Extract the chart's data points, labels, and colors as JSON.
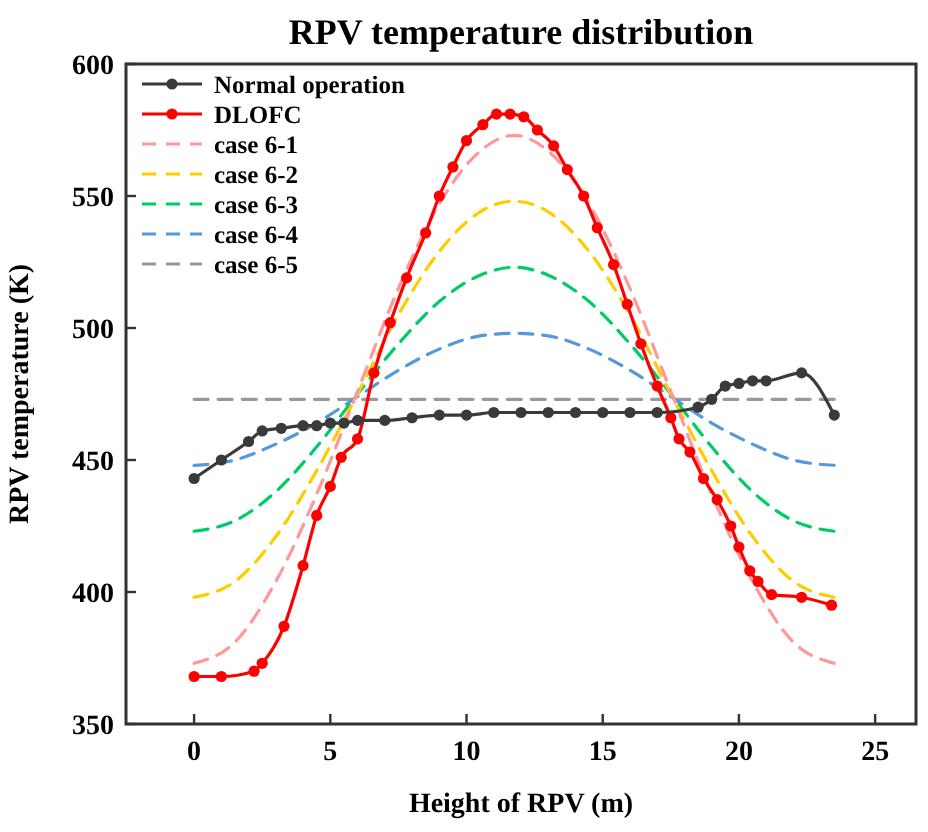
{
  "chart_data": {
    "type": "line",
    "title": "RPV temperature distribution",
    "xlabel": "Height of RPV (m)",
    "ylabel": "RPV temperature (K)",
    "xlim": [
      -2.5,
      26.5
    ],
    "ylim": [
      350,
      600
    ],
    "xticks": [
      0,
      5,
      10,
      15,
      20,
      25
    ],
    "yticks": [
      350,
      400,
      450,
      500,
      550,
      600
    ],
    "grid": false,
    "legend": "top left",
    "series": [
      {
        "name": "Normal operation",
        "color": "#3a3a3a",
        "marker": "circle",
        "line_style": "solid",
        "x": [
          0,
          1,
          2,
          2.5,
          3.2,
          4,
          4.5,
          5,
          5.5,
          6,
          7,
          8,
          9,
          10,
          11,
          12,
          13,
          14,
          15,
          16,
          17,
          18.5,
          19,
          19.5,
          20,
          20.5,
          21,
          22.3,
          23.5
        ],
        "values": [
          443,
          450,
          457,
          461,
          462,
          463,
          463,
          464,
          464,
          465,
          465,
          466,
          467,
          467,
          468,
          468,
          468,
          468,
          468,
          468,
          468,
          470,
          473,
          478,
          479,
          480,
          480,
          483,
          467
        ]
      },
      {
        "name": "DLOFC",
        "color": "#ff0000",
        "marker": "circle",
        "line_style": "solid",
        "x": [
          0,
          1,
          2.2,
          2.5,
          3.3,
          4,
          4.5,
          5,
          5.4,
          6,
          6.6,
          7.2,
          7.8,
          8.5,
          9,
          9.5,
          10,
          10.6,
          11.1,
          11.6,
          12.1,
          12.6,
          13.2,
          13.7,
          14.3,
          14.8,
          15.4,
          15.9,
          16.4,
          17,
          17.5,
          17.8,
          18.2,
          18.7,
          19.2,
          19.7,
          20,
          20.4,
          20.7,
          21.2,
          22.3,
          23.4
        ],
        "values": [
          368,
          368,
          370,
          373,
          387,
          410,
          429,
          440,
          451,
          458,
          483,
          502,
          519,
          536,
          550,
          561,
          571,
          577,
          581,
          581,
          580,
          575,
          569,
          560,
          550,
          538,
          524,
          509,
          494,
          478,
          466,
          458,
          453,
          443,
          435,
          425,
          417,
          408,
          404,
          399,
          398,
          395
        ]
      },
      {
        "name": "case 6-1",
        "color": "#ff9999",
        "marker": "none",
        "line_style": "dashed",
        "x": [
          0,
          1.5,
          3,
          4.5,
          6,
          7.5,
          9,
          10.5,
          11.75,
          13,
          14.5,
          16,
          17.5,
          19,
          20.5,
          22,
          23.5
        ],
        "values": [
          373,
          381,
          404,
          437,
          476,
          515,
          547,
          567,
          573,
          567,
          547,
          515,
          476,
          437,
          404,
          381,
          373
        ]
      },
      {
        "name": "case 6-2",
        "color": "#ffcc00",
        "marker": "none",
        "line_style": "dashed",
        "x": [
          0,
          1.5,
          3,
          4.5,
          6,
          7.5,
          9,
          10.5,
          11.75,
          13,
          14.5,
          16,
          17.5,
          19,
          20.5,
          22,
          23.5
        ],
        "values": [
          398,
          404,
          421,
          446,
          475,
          505,
          529,
          544,
          548,
          544,
          529,
          505,
          475,
          446,
          421,
          404,
          398
        ]
      },
      {
        "name": "case 6-3",
        "color": "#00cc66",
        "marker": "none",
        "line_style": "dashed",
        "x": [
          0,
          1.5,
          3,
          4.5,
          6,
          7.5,
          9,
          10.5,
          11.75,
          13,
          14.5,
          16,
          17.5,
          19,
          20.5,
          22,
          23.5
        ],
        "values": [
          423,
          427,
          438,
          455,
          475,
          494,
          510,
          520,
          523,
          520,
          510,
          494,
          475,
          455,
          438,
          427,
          423
        ]
      },
      {
        "name": "case 6-4",
        "color": "#5599dd",
        "marker": "none",
        "line_style": "dashed",
        "x": [
          0,
          1.5,
          3,
          4.5,
          6,
          7.5,
          9,
          10.5,
          11.75,
          13,
          14.5,
          16,
          17.5,
          19,
          20.5,
          22,
          23.5
        ],
        "values": [
          448,
          450,
          456,
          464,
          474,
          484,
          492,
          497,
          498,
          497,
          492,
          484,
          474,
          464,
          456,
          450,
          448
        ]
      },
      {
        "name": "case 6-5",
        "color": "#999999",
        "marker": "none",
        "line_style": "dashed",
        "x": [
          0,
          23.5
        ],
        "values": [
          473,
          473
        ]
      }
    ]
  }
}
